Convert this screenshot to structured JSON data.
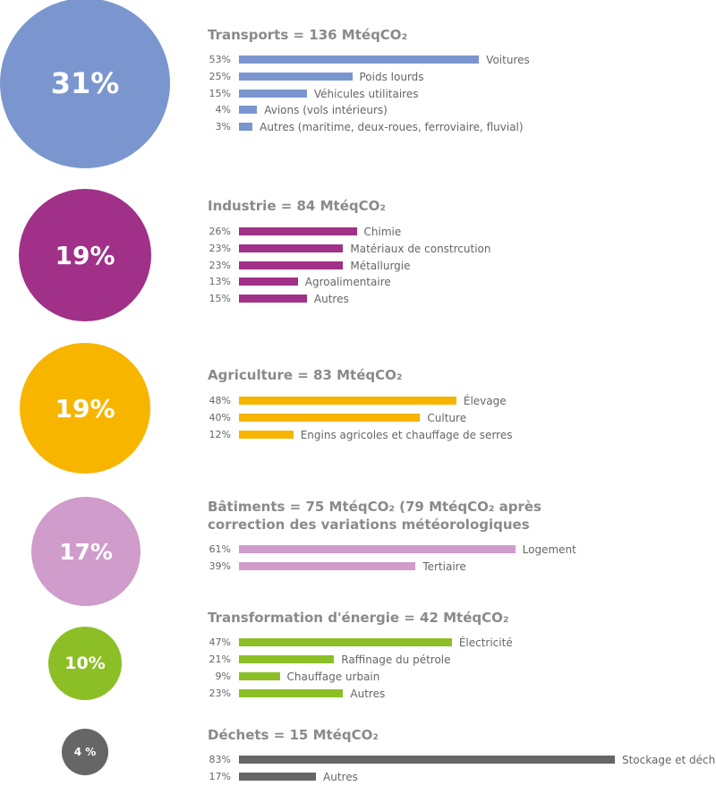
{
  "chart_data": {
    "type": "bar",
    "sections": [
      {
        "id": "transports",
        "share": "31%",
        "title": "Transports = 136 MtéqCO₂",
        "color": "#7b96cf",
        "categories": [
          "Voitures",
          "Poids lourds",
          "Véhicules utilitaires",
          "Avions (vols intérieurs)",
          "Autres (maritime, deux-roues, ferroviaire, fluvial)"
        ],
        "value_labels": [
          "53%",
          "25%",
          "15%",
          "4%",
          "3%"
        ],
        "values": [
          53,
          25,
          15,
          4,
          3
        ]
      },
      {
        "id": "industrie",
        "share": "19%",
        "title": "Industrie = 84 MtéqCO₂",
        "color": "#a03088",
        "categories": [
          "Chimie",
          "Matériaux de constrcution",
          "Métallurgie",
          "Agroalimentaire",
          "Autres"
        ],
        "value_labels": [
          "26%",
          "23%",
          "23%",
          "13%",
          "15%"
        ],
        "values": [
          26,
          23,
          23,
          13,
          15
        ]
      },
      {
        "id": "agriculture",
        "share": "19%",
        "title": "Agriculture = 83 MtéqCO₂",
        "color": "#f7b500",
        "categories": [
          "Élevage",
          "Culture",
          "Engins agricoles et chauffage de serres"
        ],
        "value_labels": [
          "48%",
          "40%",
          "12%"
        ],
        "values": [
          48,
          40,
          12
        ]
      },
      {
        "id": "batiments",
        "share": "17%",
        "title": "Bâtiments = 75 MtéqCO₂ (79 MtéqCO₂ après",
        "title2": "correction des variations météorologiques",
        "color": "#cf9ccb",
        "categories": [
          "Logement",
          "Tertiaire"
        ],
        "value_labels": [
          "61%",
          "39%"
        ],
        "values": [
          61,
          39
        ]
      },
      {
        "id": "energie",
        "share": "10%",
        "title": "Transformation d'énergie = 42 MtéqCO₂",
        "color": "#8cbf26",
        "categories": [
          "Électricité",
          "Raffinage du pétrole",
          "Chauffage urbain",
          "Autres"
        ],
        "value_labels": [
          "47%",
          "21%",
          "9%",
          "23%"
        ],
        "values": [
          47,
          21,
          9,
          23
        ]
      },
      {
        "id": "dechets",
        "share": "4 %",
        "title": "Déchets = 15 MtéqCO₂",
        "color": "#666666",
        "categories": [
          "Stockage et déchets",
          "Autres"
        ],
        "value_labels": [
          "83%",
          "17%"
        ],
        "values": [
          83,
          17
        ]
      }
    ]
  }
}
